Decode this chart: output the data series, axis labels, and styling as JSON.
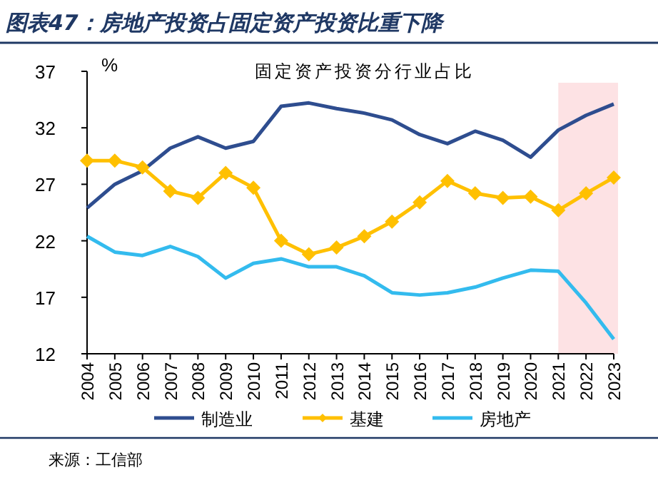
{
  "chart_data": {
    "type": "line",
    "title": "图表47：房地产投资占固定资产投资比重下降",
    "subtitle": "固定资产投资分行业占比",
    "ylabel": "%",
    "categories": [
      "2004",
      "2005",
      "2006",
      "2007",
      "2008",
      "2009",
      "2010",
      "2011",
      "2012",
      "2013",
      "2014",
      "2015",
      "2016",
      "2017",
      "2018",
      "2019",
      "2020",
      "2021",
      "2022",
      "2023"
    ],
    "series": [
      {
        "name": "制造业",
        "color": "#2e4d8f",
        "marker": "none",
        "values": [
          24.9,
          27.0,
          28.2,
          30.2,
          31.2,
          30.2,
          30.8,
          33.9,
          34.2,
          33.7,
          33.3,
          32.7,
          31.4,
          30.6,
          31.7,
          30.9,
          29.4,
          31.8,
          33.1,
          34.1
        ]
      },
      {
        "name": "基建",
        "color": "#ffc000",
        "marker": "diamond",
        "values": [
          29.1,
          29.1,
          28.5,
          26.4,
          25.8,
          28.0,
          26.7,
          22.0,
          20.8,
          21.4,
          22.4,
          23.7,
          25.4,
          27.3,
          26.2,
          25.8,
          25.9,
          24.7,
          26.2,
          27.6
        ]
      },
      {
        "name": "房地产",
        "color": "#33bbee",
        "marker": "none",
        "values": [
          22.4,
          21.0,
          20.7,
          21.5,
          20.6,
          18.7,
          20.0,
          20.4,
          19.7,
          19.7,
          18.9,
          17.4,
          17.2,
          17.4,
          17.9,
          18.7,
          19.4,
          19.3,
          16.5,
          13.3
        ]
      }
    ],
    "ylim": [
      12,
      37
    ],
    "yticks": [
      12,
      17,
      22,
      27,
      32,
      37
    ],
    "grid": false,
    "legend": "bottom",
    "bands": [
      {
        "axis": "x",
        "from": "2021",
        "to": "2023",
        "color": "#fde2e4"
      }
    ],
    "annotations": [
      "来源：工信部"
    ]
  }
}
